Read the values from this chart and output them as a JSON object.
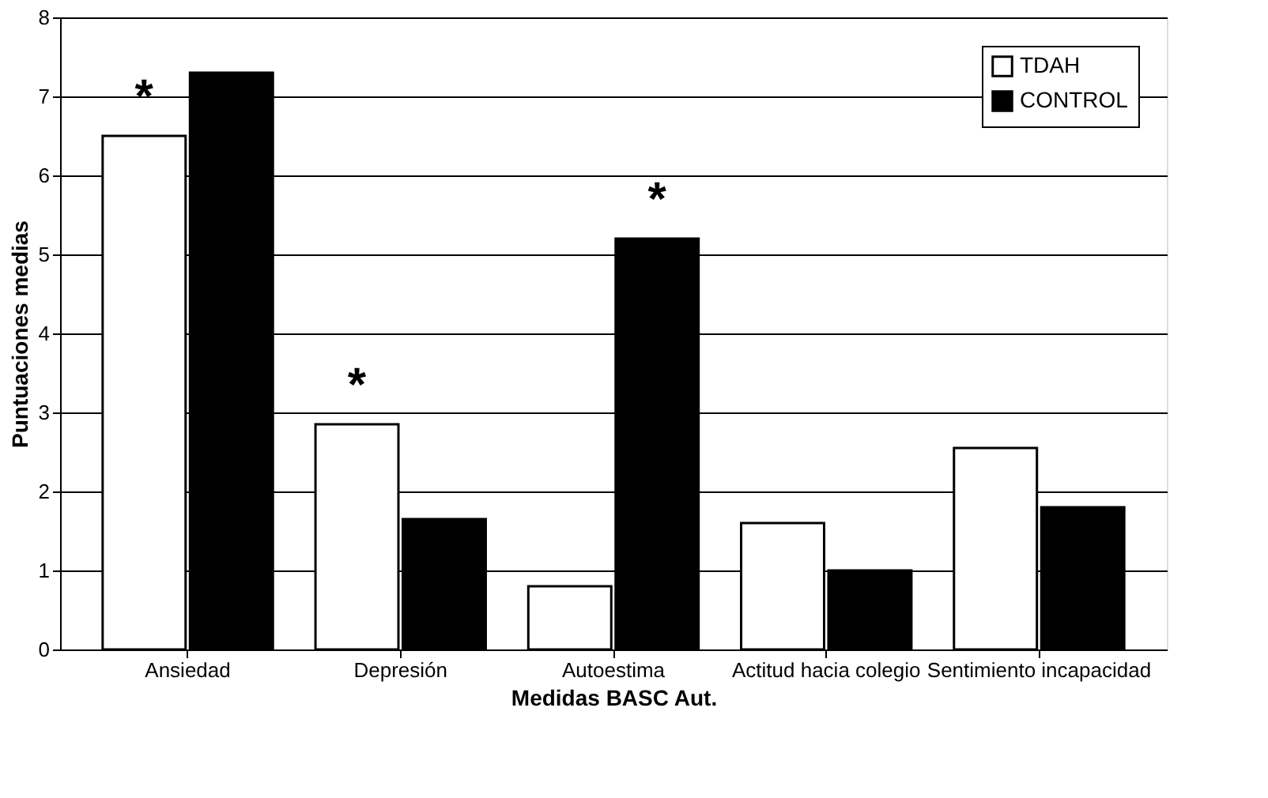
{
  "chart_data": {
    "type": "bar",
    "xlabel": "Medidas BASC Aut.",
    "ylabel": "Puntuaciones medias",
    "categories": [
      "Ansiedad",
      "Depresión",
      "Autoestima",
      "Actitud hacia colegio",
      "Sentimiento incapacidad"
    ],
    "series": [
      {
        "name": "TDAH",
        "color": "#ffffff",
        "values": [
          6.5,
          2.85,
          0.8,
          1.6,
          2.55
        ]
      },
      {
        "name": "CONTROL",
        "color": "#000000",
        "values": [
          7.3,
          1.65,
          5.2,
          1.0,
          1.8
        ]
      }
    ],
    "ylim": [
      0,
      8
    ],
    "yticks": [
      0,
      1,
      2,
      3,
      4,
      5,
      6,
      7,
      8
    ],
    "grid": "y",
    "legend": "top right",
    "annotations": [
      {
        "text": "*",
        "x": "Ansiedad",
        "y": 6.5
      },
      {
        "text": "*",
        "x": "Depresión",
        "y": 2.85
      },
      {
        "text": "*",
        "x": "Autoestima",
        "y": 5.2
      }
    ]
  }
}
